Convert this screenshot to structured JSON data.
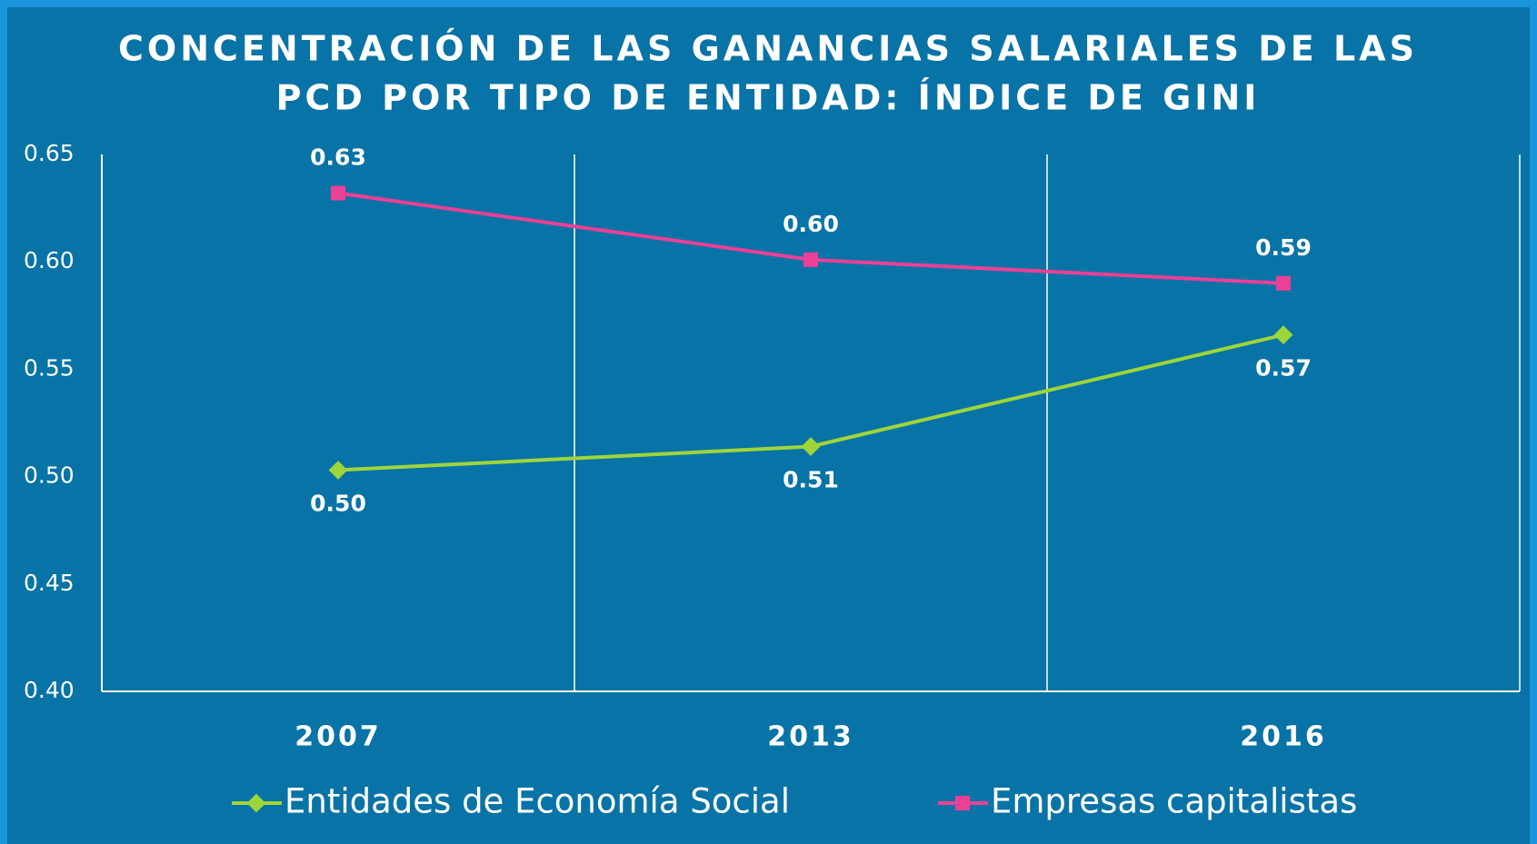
{
  "chart_data": {
    "type": "line",
    "title": [
      "CONCENTRACIÓN DE LAS GANANCIAS SALARIALES DE LAS",
      "PCD POR TIPO DE ENTIDAD: ÍNDICE DE GINI"
    ],
    "categories": [
      "2007",
      "2013",
      "2016"
    ],
    "series": [
      {
        "name": "Entidades de Economía Social",
        "color": "#9ed53a",
        "marker": "diamond",
        "values": [
          0.503,
          0.514,
          0.566
        ],
        "value_labels": [
          "0.50",
          "0.51",
          "0.57"
        ]
      },
      {
        "name": "Empresas capitalistas",
        "color": "#ec4096",
        "marker": "square",
        "values": [
          0.632,
          0.601,
          0.59
        ],
        "value_labels": [
          "0.63",
          "0.60",
          "0.59"
        ]
      }
    ],
    "ylim": [
      0.4,
      0.65
    ],
    "yticks": [
      {
        "value": 0.4,
        "label": "0.40"
      },
      0.45,
      {
        "value": 0.5,
        "label": "0.50"
      },
      0.55,
      {
        "value": 0.6,
        "label": "0.60"
      },
      0.65
    ],
    "grid": true,
    "legend": "bottom"
  }
}
